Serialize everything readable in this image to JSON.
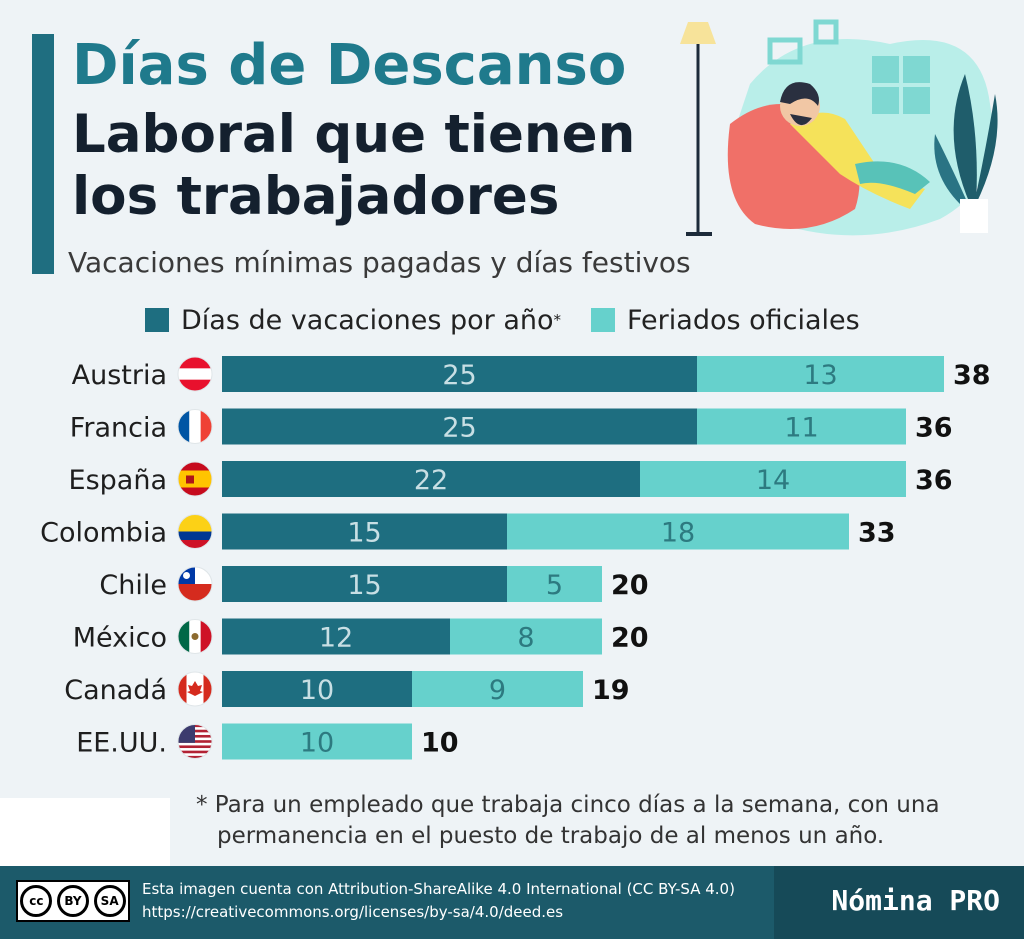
{
  "header": {
    "title_line1": "Días de Descanso",
    "title_line2": "Laboral que tienen",
    "title_line3": "los trabajadores",
    "subtitle": "Vacaciones mínimas pagadas y días festivos"
  },
  "legend": {
    "vacation_label": "Días de vacaciones por año",
    "vacation_mark": "*",
    "holidays_label": "Feriados oficiales"
  },
  "colors": {
    "vacation": "#1e6e80",
    "holidays": "#66d1cc",
    "accent": "#1f7a8c"
  },
  "chart_data": {
    "type": "bar",
    "orientation": "horizontal",
    "stacked": true,
    "title": "Días de Descanso Laboral que tienen los trabajadores",
    "subtitle": "Vacaciones mínimas pagadas y días festivos",
    "categories": [
      "Austria",
      "Francia",
      "España",
      "Colombia",
      "Chile",
      "México",
      "Canadá",
      "EE.UU."
    ],
    "flags": [
      "austria-flag",
      "france-flag",
      "spain-flag",
      "colombia-flag",
      "chile-flag",
      "mexico-flag",
      "canada-flag",
      "usa-flag"
    ],
    "series": [
      {
        "name": "Días de vacaciones por año*",
        "values": [
          25,
          25,
          22,
          15,
          15,
          12,
          10,
          0
        ]
      },
      {
        "name": "Feriados oficiales",
        "values": [
          13,
          11,
          14,
          18,
          5,
          8,
          9,
          10
        ]
      }
    ],
    "totals": [
      38,
      36,
      36,
      33,
      20,
      20,
      19,
      10
    ],
    "xlim": [
      0,
      40
    ]
  },
  "footnote": {
    "line1": "* Para un empleado que trabaja cinco días a la semana, con una",
    "line2": "permanencia en el puesto de trabajo de al menos un año."
  },
  "footer": {
    "license_line1": "Esta imagen cuenta con Attribution-ShareAlike 4.0 International (CC BY-SA 4.0)",
    "license_line2": "https://creativecommons.org/licenses/by-sa/4.0/deed.es",
    "cc_badge": "cc",
    "by_badge": "BY",
    "sa_badge": "SA",
    "brand": "Nómina PRO"
  }
}
